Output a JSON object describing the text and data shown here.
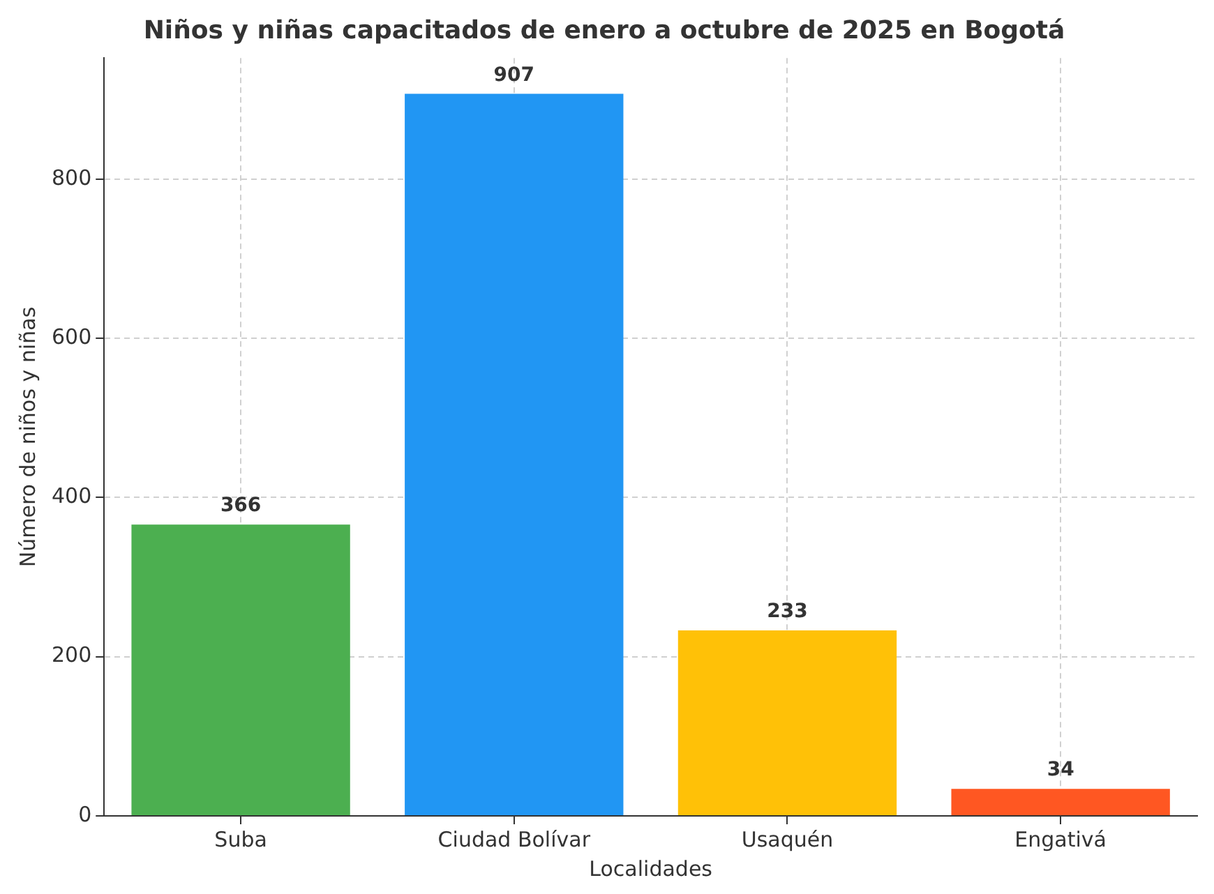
{
  "chart_data": {
    "type": "bar",
    "title": "Niños y niñas capacitados de enero a octubre de 2025 en Bogotá",
    "xlabel": "Localidades",
    "ylabel": "Número de niños y niñas",
    "categories": [
      "Suba",
      "Ciudad Bolívar",
      "Usaquén",
      "Engativá"
    ],
    "values": [
      366,
      907,
      233,
      34
    ],
    "colors": [
      "#4caf50",
      "#2196f3",
      "#ffc107",
      "#ff5722"
    ],
    "ylim": [
      0,
      952
    ],
    "yticks": [
      0,
      200,
      400,
      600,
      800
    ],
    "grid": true,
    "data_labels": true,
    "legend": false
  }
}
